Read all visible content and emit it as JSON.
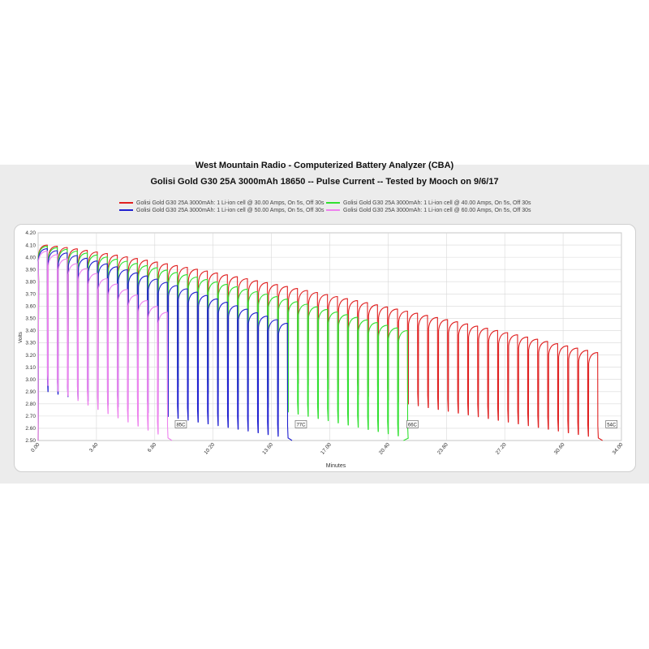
{
  "chart_data": {
    "type": "line",
    "title": "West Mountain Radio - Computerized Battery Analyzer (CBA)",
    "subtitle": "Golisi Gold G30 25A 3000mAh 18650 -- Pulse Current -- Tested by Mooch on 9/6/17",
    "xlabel": "Minutes",
    "ylabel": "Volts",
    "xlim": [
      0,
      34
    ],
    "ylim": [
      2.5,
      4.2
    ],
    "x_ticks": [
      "0.00",
      "3.40",
      "6.80",
      "10.20",
      "13.60",
      "17.00",
      "20.40",
      "23.80",
      "27.20",
      "30.60",
      "34.00"
    ],
    "y_ticks": [
      "2.50",
      "2.60",
      "2.70",
      "2.80",
      "2.90",
      "3.00",
      "3.10",
      "3.20",
      "3.30",
      "3.40",
      "3.50",
      "3.60",
      "3.70",
      "3.80",
      "3.90",
      "4.00",
      "4.10",
      "4.20"
    ],
    "grid": true,
    "legend_position": "top",
    "pulse_period_minutes": 0.5833,
    "series": [
      {
        "name": "Golisi Gold G30 25A 3000mAh: 1 Li-ion cell @ 30.00 Amps, On 5s, Off 30s",
        "color": "#e02020",
        "end_minutes": 32.9,
        "rest_voltage": [
          4.1,
          3.22
        ],
        "pulse_voltage": [
          3.4,
          2.52
        ],
        "end_label": "54C"
      },
      {
        "name": "Golisi Gold G30 25A 3000mAh: 1 Li-ion cell @ 40.00 Amps, On 5s, Off 30s",
        "color": "#30e030",
        "end_minutes": 21.3,
        "rest_voltage": [
          4.09,
          3.4
        ],
        "pulse_voltage": [
          3.22,
          2.52
        ],
        "end_label": "66C"
      },
      {
        "name": "Golisi Gold G30 25A 3000mAh: 1 Li-ion cell @ 50.00 Amps, On 5s, Off 30s",
        "color": "#2020d0",
        "end_minutes": 14.8,
        "rest_voltage": [
          4.07,
          3.46
        ],
        "pulse_voltage": [
          2.9,
          2.52
        ],
        "end_label": "77C"
      },
      {
        "name": "Golisi Gold G30 25A 3000mAh: 1 Li-ion cell @ 60.00 Amps, On 5s, Off 30s",
        "color": "#ee82ee",
        "end_minutes": 7.8,
        "rest_voltage": [
          4.05,
          3.55
        ],
        "pulse_voltage": [
          2.95,
          2.52
        ],
        "end_label": "85C"
      }
    ]
  }
}
